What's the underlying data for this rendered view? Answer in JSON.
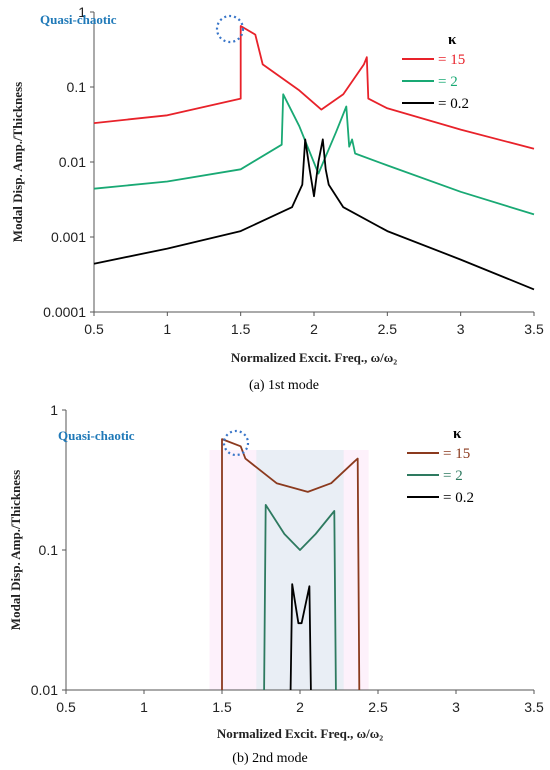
{
  "chart_data": [
    {
      "type": "line",
      "caption": "(a) 1st mode",
      "xlabel": "Normalized Excit. Freq.,  ω/ω₂",
      "ylabel": "Modal Disp. Amp./Thickness",
      "xlim": [
        0.5,
        3.5
      ],
      "ylim": [
        0.0001,
        1
      ],
      "yscale": "log",
      "xticks": [
        "0.5",
        "1",
        "1.5",
        "2",
        "2.5",
        "3",
        "3.5"
      ],
      "yticks": [
        "1",
        "0.1",
        "0.01",
        "0.001",
        "0.0001"
      ],
      "annotation": "Quasi-chaotic",
      "legend_title": "κ",
      "legend_position": "top-right",
      "series": [
        {
          "name": "= 15",
          "color": "#e8222a",
          "x": [
            0.5,
            1.0,
            1.5,
            1.5,
            1.6,
            1.65,
            1.9,
            2.05,
            2.2,
            2.34,
            2.36,
            2.37,
            2.5,
            3.0,
            3.5
          ],
          "y": [
            0.033,
            0.042,
            0.07,
            0.65,
            0.5,
            0.2,
            0.09,
            0.05,
            0.08,
            0.2,
            0.25,
            0.07,
            0.052,
            0.027,
            0.015
          ]
        },
        {
          "name": "= 2",
          "color": "#19a974",
          "x": [
            0.5,
            1.0,
            1.5,
            1.78,
            1.79,
            1.9,
            2.03,
            2.15,
            2.22,
            2.24,
            2.26,
            2.28,
            2.5,
            3.0,
            3.5
          ],
          "y": [
            0.0044,
            0.0055,
            0.008,
            0.017,
            0.08,
            0.03,
            0.007,
            0.025,
            0.055,
            0.016,
            0.02,
            0.013,
            0.009,
            0.004,
            0.002
          ]
        },
        {
          "name": "= 0.2",
          "color": "#000000",
          "x": [
            0.5,
            1.0,
            1.5,
            1.85,
            1.92,
            1.94,
            1.97,
            2.0,
            2.03,
            2.06,
            2.08,
            2.1,
            2.2,
            2.5,
            3.0,
            3.5
          ],
          "y": [
            0.00044,
            0.0007,
            0.0012,
            0.0025,
            0.005,
            0.02,
            0.008,
            0.0035,
            0.01,
            0.02,
            0.008,
            0.005,
            0.0025,
            0.0012,
            0.0005,
            0.0002
          ]
        }
      ]
    },
    {
      "type": "line",
      "caption": "(b) 2nd mode",
      "xlabel": "Normalized Excit. Freq.,  ω/ω₂",
      "ylabel": "Modal Disp. Amp./Thickness",
      "xlim": [
        0.5,
        3.5
      ],
      "ylim": [
        0.01,
        1
      ],
      "yscale": "log",
      "xticks": [
        "0.5",
        "1",
        "1.5",
        "2",
        "2.5",
        "3",
        "3.5"
      ],
      "yticks": [
        "1",
        "0.1",
        "0.01"
      ],
      "annotation": "Quasi-chaotic",
      "legend_title": "κ",
      "legend_position": "top-right",
      "series": [
        {
          "name": "= 15",
          "color": "#8b3a1e",
          "x": [
            1.5,
            1.5,
            1.62,
            1.65,
            1.85,
            2.05,
            2.2,
            2.35,
            2.37,
            2.38
          ],
          "y": [
            0.01,
            0.62,
            0.55,
            0.45,
            0.3,
            0.26,
            0.3,
            0.43,
            0.45,
            0.01
          ]
        },
        {
          "name": "= 2",
          "color": "#2e7a60",
          "x": [
            1.77,
            1.78,
            1.9,
            2.0,
            2.1,
            2.22,
            2.23
          ],
          "y": [
            0.01,
            0.21,
            0.13,
            0.1,
            0.13,
            0.19,
            0.01
          ]
        },
        {
          "name": "= 0.2",
          "color": "#000000",
          "x": [
            1.94,
            1.95,
            1.99,
            2.01,
            2.06,
            2.07
          ],
          "y": [
            0.01,
            0.057,
            0.03,
            0.03,
            0.055,
            0.01
          ]
        }
      ]
    }
  ]
}
